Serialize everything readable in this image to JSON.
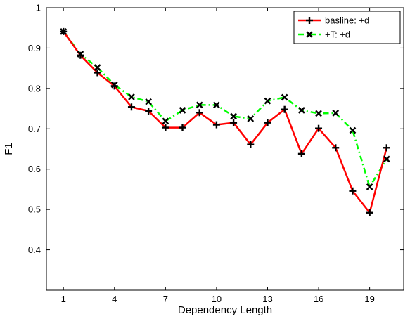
{
  "chart_data": {
    "type": "line",
    "title": "",
    "xlabel": "Dependency Length",
    "ylabel": "F1",
    "xlim": [
      0,
      21
    ],
    "ylim": [
      0.3,
      1.0
    ],
    "xticks": [
      1,
      4,
      7,
      10,
      13,
      16,
      19
    ],
    "yticks": [
      0.4,
      0.5,
      0.6,
      0.7,
      0.8,
      0.9,
      1.0
    ],
    "xtick_labels": [
      "1",
      "4",
      "7",
      "10",
      "13",
      "16",
      "19"
    ],
    "ytick_labels": [
      "0.4",
      "0.5",
      "0.6",
      "0.7",
      "0.8",
      "0.9",
      "1"
    ],
    "grid": false,
    "legend_position": "top-right",
    "x": [
      1,
      2,
      3,
      4,
      5,
      6,
      7,
      8,
      9,
      10,
      11,
      12,
      13,
      14,
      15,
      16,
      17,
      18,
      19,
      20
    ],
    "series": [
      {
        "name": "basline: +d",
        "color": "#ff0000",
        "marker": "plus",
        "line_style": "solid",
        "values": [
          0.941,
          0.882,
          0.839,
          0.806,
          0.754,
          0.744,
          0.703,
          0.703,
          0.74,
          0.71,
          0.715,
          0.661,
          0.715,
          0.748,
          0.638,
          0.701,
          0.653,
          0.546,
          0.492,
          0.653
        ]
      },
      {
        "name": "+T: +d",
        "color": "#00ff00",
        "marker": "x",
        "line_style": "dashdot",
        "values": [
          0.941,
          0.885,
          0.852,
          0.809,
          0.779,
          0.767,
          0.719,
          0.746,
          0.759,
          0.759,
          0.731,
          0.725,
          0.769,
          0.778,
          0.746,
          0.738,
          0.739,
          0.696,
          0.556,
          0.625
        ]
      }
    ]
  }
}
